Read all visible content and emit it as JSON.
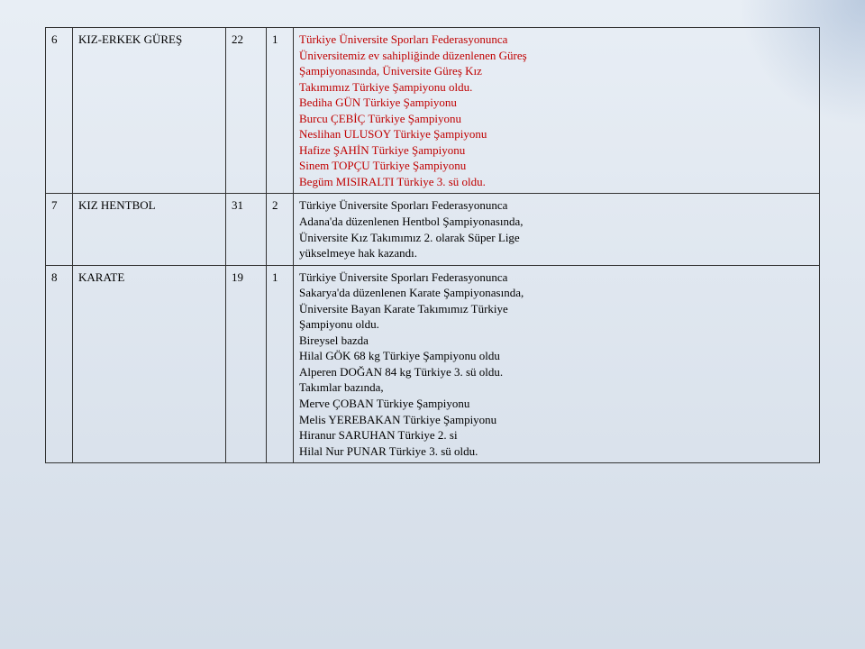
{
  "table": {
    "border_color": "#333333",
    "font_size": 13,
    "colors": {
      "red": "#c00000",
      "black": "#000000"
    },
    "col_widths": {
      "num": 30,
      "name": 170,
      "a": 45,
      "b": 30
    },
    "rows": [
      {
        "num": "6",
        "name": "KIZ-ERKEK GÜREŞ",
        "a": "22",
        "b": "1",
        "desc_lines": [
          {
            "text": "Türkiye Üniversite Sporları Federasyonunca",
            "color": "red"
          },
          {
            "text": "Üniversitemiz ev sahipliğinde düzenlenen Güreş",
            "color": "red"
          },
          {
            "text": "Şampiyonasında, Üniversite Güreş Kız",
            "color": "red"
          },
          {
            "text": "Takımımız Türkiye Şampiyonu oldu.",
            "color": "red"
          },
          {
            "text": "Bediha GÜN Türkiye Şampiyonu",
            "color": "red"
          },
          {
            "text": "Burcu ÇEBİÇ  Türkiye Şampiyonu",
            "color": "red"
          },
          {
            "text": "Neslihan ULUSOY Türkiye Şampiyonu",
            "color": "red"
          },
          {
            "text": "Hafize ŞAHİN Türkiye Şampiyonu",
            "color": "red"
          },
          {
            "text": "Sinem TOPÇU Türkiye Şampiyonu",
            "color": "red"
          },
          {
            "text": "Begüm MISIRALTI Türkiye 3. sü oldu.",
            "color": "red"
          }
        ]
      },
      {
        "num": "7",
        "name": "KIZ HENTBOL",
        "a": "31",
        "b": "2",
        "desc_lines": [
          {
            "text": "Türkiye Üniversite Sporları Federasyonunca",
            "color": "black"
          },
          {
            "text": "Adana'da düzenlenen Hentbol Şampiyonasında,",
            "color": "black"
          },
          {
            "text": "Üniversite Kız Takımımız 2. olarak Süper Lige",
            "color": "black"
          },
          {
            "text": "yükselmeye hak kazandı.",
            "color": "black"
          }
        ]
      },
      {
        "num": "8",
        "name": "KARATE",
        "a": "19",
        "b": "1",
        "desc_lines": [
          {
            "text": "Türkiye Üniversite Sporları Federasyonunca",
            "color": "black"
          },
          {
            "text": "Sakarya'da düzenlenen Karate Şampiyonasında,",
            "color": "black"
          },
          {
            "text": "Üniversite Bayan Karate Takımımız Türkiye",
            "color": "black"
          },
          {
            "text": "Şampiyonu oldu.",
            "color": "black"
          },
          {
            "text": "Bireysel bazda",
            "color": "black"
          },
          {
            "text": "Hilal GÖK  68 kg  Türkiye Şampiyonu oldu",
            "color": "black"
          },
          {
            "text": "Alperen DOĞAN 84 kg  Türkiye 3. sü oldu.",
            "color": "black"
          },
          {
            "text": "Takımlar bazında,",
            "color": "black"
          },
          {
            "text": "Merve ÇOBAN Türkiye Şampiyonu",
            "color": "black"
          },
          {
            "text": " Melis YEREBAKAN Türkiye Şampiyonu",
            "color": "black"
          },
          {
            "text": "Hiranur SARUHAN Türkiye 2. si",
            "color": "black"
          },
          {
            "text": "Hilal Nur PUNAR Türkiye 3. sü oldu.",
            "color": "black"
          }
        ]
      }
    ]
  }
}
